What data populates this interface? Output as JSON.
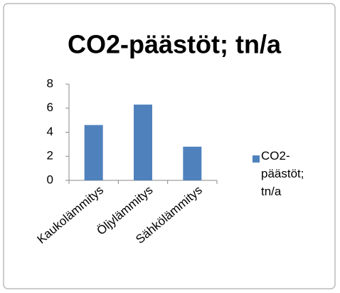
{
  "chart_data": {
    "type": "bar",
    "title": "CO2-päästöt; tn/a",
    "categories": [
      "Kaukolämmitys",
      "Öljylämmitys",
      "Sähkölämmitys"
    ],
    "series": [
      {
        "name": "CO2-päästöt; tn/a",
        "color": "#4f81bd",
        "values": [
          4.6,
          6.3,
          2.8
        ]
      }
    ],
    "ylim": [
      0,
      8
    ],
    "yticks": [
      0,
      2,
      4,
      6,
      8
    ],
    "grid": false,
    "legend": "right"
  }
}
